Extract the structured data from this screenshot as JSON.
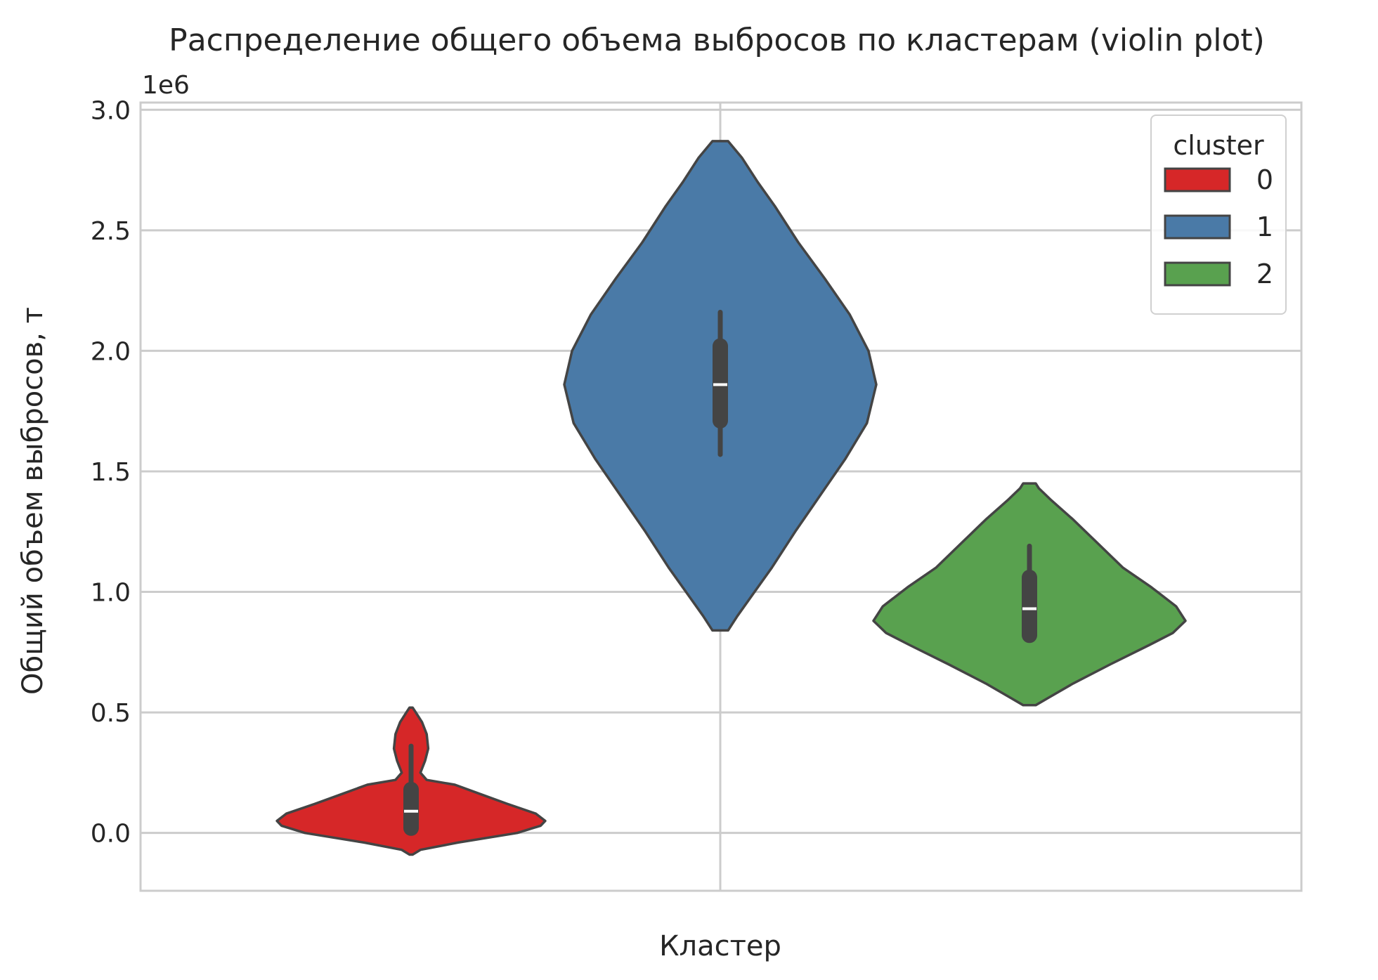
{
  "chart_data": {
    "type": "violin",
    "title": "Распределение общего объема выбросов по кластерам (violin plot)",
    "xlabel": "Кластер",
    "ylabel": "Общий объем выбросов, т",
    "y_offset_text": "1e6",
    "ylim": [
      -0.24,
      3.03
    ],
    "y_ticks": [
      0.0,
      0.5,
      1.0,
      1.5,
      2.0,
      2.5,
      3.0
    ],
    "y_tick_labels": [
      "0.0",
      "0.5",
      "1.0",
      "1.5",
      "2.0",
      "2.5",
      "3.0"
    ],
    "y_scale_factor": 1000000,
    "grid": true,
    "legend": {
      "title": "cluster",
      "position": "top-right"
    },
    "series": [
      {
        "name": "0",
        "color": "#d62728",
        "dodge_position": -0.5,
        "median": 0.09,
        "q1": 0.02,
        "q3": 0.18,
        "whisker_low": 0.0,
        "whisker_high": 0.36,
        "density": [
          [
            -0.09,
            0.01
          ],
          [
            -0.07,
            0.06
          ],
          [
            -0.04,
            0.3
          ],
          [
            0.0,
            0.68
          ],
          [
            0.03,
            0.83
          ],
          [
            0.05,
            0.86
          ],
          [
            0.08,
            0.8
          ],
          [
            0.12,
            0.62
          ],
          [
            0.16,
            0.45
          ],
          [
            0.2,
            0.28
          ],
          [
            0.22,
            0.1
          ],
          [
            0.25,
            0.06
          ],
          [
            0.3,
            0.09
          ],
          [
            0.35,
            0.11
          ],
          [
            0.41,
            0.1
          ],
          [
            0.46,
            0.07
          ],
          [
            0.5,
            0.03
          ],
          [
            0.52,
            0.01
          ]
        ]
      },
      {
        "name": "1",
        "color": "#4a7aa7",
        "dodge_position": 0.0,
        "median": 1.86,
        "q1": 1.71,
        "q3": 2.02,
        "whisker_low": 1.57,
        "whisker_high": 2.16,
        "density": [
          [
            0.84,
            0.05
          ],
          [
            0.9,
            0.11
          ],
          [
            1.0,
            0.22
          ],
          [
            1.1,
            0.33
          ],
          [
            1.25,
            0.48
          ],
          [
            1.4,
            0.64
          ],
          [
            1.55,
            0.8
          ],
          [
            1.7,
            0.94
          ],
          [
            1.86,
            1.0
          ],
          [
            2.0,
            0.95
          ],
          [
            2.15,
            0.83
          ],
          [
            2.3,
            0.67
          ],
          [
            2.45,
            0.5
          ],
          [
            2.6,
            0.35
          ],
          [
            2.7,
            0.24
          ],
          [
            2.8,
            0.14
          ],
          [
            2.87,
            0.05
          ]
        ]
      },
      {
        "name": "2",
        "color": "#59a14f",
        "dodge_position": 0.5,
        "median": 0.93,
        "q1": 0.82,
        "q3": 1.06,
        "whisker_low": 0.8,
        "whisker_high": 1.19,
        "density": [
          [
            0.53,
            0.04
          ],
          [
            0.56,
            0.12
          ],
          [
            0.62,
            0.28
          ],
          [
            0.7,
            0.52
          ],
          [
            0.78,
            0.77
          ],
          [
            0.83,
            0.92
          ],
          [
            0.88,
            1.0
          ],
          [
            0.94,
            0.94
          ],
          [
            1.02,
            0.78
          ],
          [
            1.1,
            0.6
          ],
          [
            1.2,
            0.44
          ],
          [
            1.3,
            0.28
          ],
          [
            1.38,
            0.14
          ],
          [
            1.43,
            0.06
          ],
          [
            1.45,
            0.04
          ]
        ]
      }
    ]
  }
}
